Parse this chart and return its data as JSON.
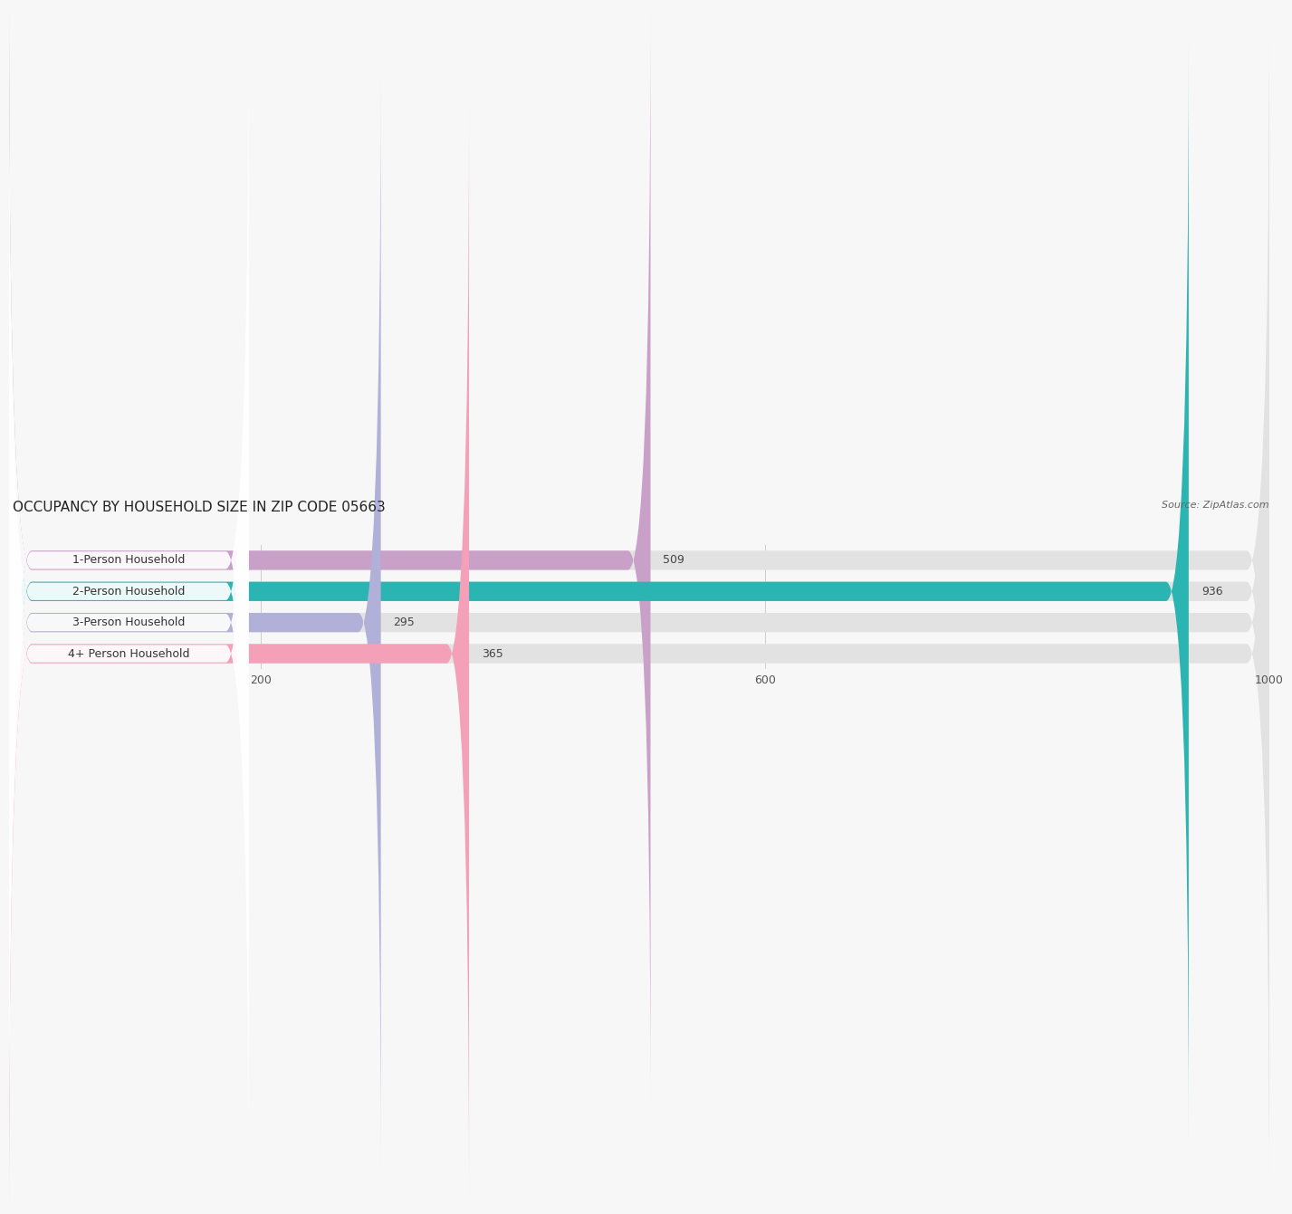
{
  "title": "OCCUPANCY BY HOUSEHOLD SIZE IN ZIP CODE 05663",
  "source": "Source: ZipAtlas.com",
  "categories": [
    "1-Person Household",
    "2-Person Household",
    "3-Person Household",
    "4+ Person Household"
  ],
  "values": [
    509,
    936,
    295,
    365
  ],
  "bar_colors": [
    "#c9a0c8",
    "#2ab5b2",
    "#b0b0d8",
    "#f4a0b8"
  ],
  "bar_bg_color": "#e2e2e2",
  "label_bg_color": "#ffffff",
  "background_color": "#f7f7f7",
  "xlim": [
    0,
    1000
  ],
  "xticks": [
    200,
    600,
    1000
  ],
  "title_fontsize": 11,
  "source_fontsize": 8,
  "label_fontsize": 9,
  "tick_fontsize": 9,
  "bar_height": 0.62,
  "bar_gap": 0.38
}
